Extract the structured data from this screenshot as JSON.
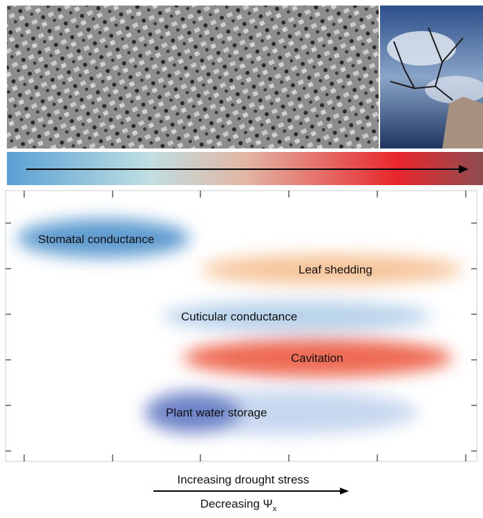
{
  "header": {
    "image_left": "micrograph",
    "image_right": "tree"
  },
  "processes": [
    {
      "label": "Stomatal conductance"
    },
    {
      "label": "Leaf shedding"
    },
    {
      "label": "Cuticular conductance"
    },
    {
      "label": "Cavitation"
    },
    {
      "label": "Plant water storage"
    }
  ],
  "footer": {
    "line1": "Increasing drought stress",
    "line2": "Decreasing Ψ",
    "line2_subscript": "x"
  }
}
